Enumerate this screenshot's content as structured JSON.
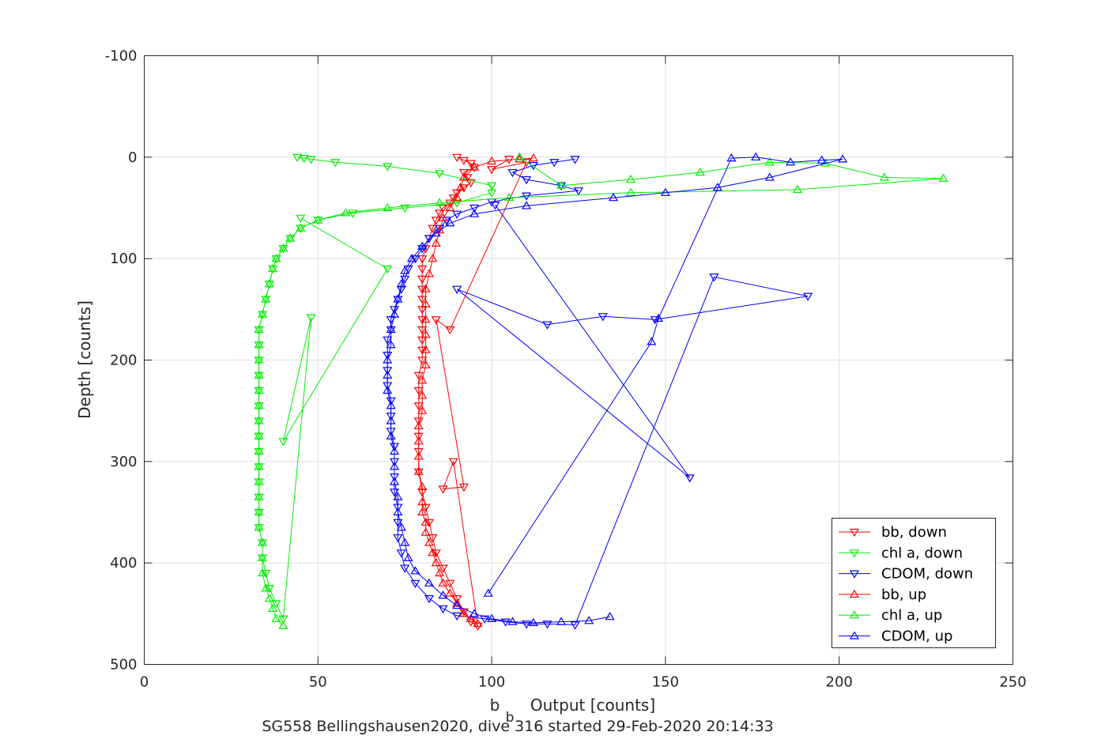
{
  "chart_data": {
    "type": "scatter",
    "title": "SG558 Bellingshausen2020, dive 316 started 29-Feb-2020 20:14:33",
    "xlabel": {
      "main": "Output [counts]",
      "base": "b",
      "sub": "b"
    },
    "ylabel": "Depth [counts]",
    "xlim": [
      0,
      250
    ],
    "ylim": [
      -100,
      500
    ],
    "y_reversed": true,
    "xticks": [
      "0",
      "50",
      "100",
      "150",
      "200",
      "250"
    ],
    "yticks": [
      "-100",
      "0",
      "100",
      "200",
      "300",
      "400",
      "500"
    ],
    "grid": true,
    "legend_position": "bottom-right",
    "series": [
      {
        "name": "bb, down",
        "color": "#ff0000",
        "marker": "triangle-down",
        "points": [
          [
            90,
            0
          ],
          [
            92,
            3
          ],
          [
            94,
            6
          ],
          [
            95,
            10
          ],
          [
            92,
            15
          ],
          [
            93,
            20
          ],
          [
            94,
            25
          ],
          [
            92,
            30
          ],
          [
            90,
            35
          ],
          [
            89,
            40
          ],
          [
            88,
            45
          ],
          [
            86,
            50
          ],
          [
            85,
            55
          ],
          [
            84,
            62
          ],
          [
            83,
            70
          ],
          [
            82,
            80
          ],
          [
            81,
            90
          ],
          [
            80,
            100
          ],
          [
            80,
            110
          ],
          [
            80,
            120
          ],
          [
            80,
            130
          ],
          [
            80,
            140
          ],
          [
            80,
            150
          ],
          [
            80,
            160
          ],
          [
            80,
            170
          ],
          [
            80,
            180
          ],
          [
            80,
            190
          ],
          [
            80,
            200
          ],
          [
            79,
            215
          ],
          [
            79,
            230
          ],
          [
            79,
            245
          ],
          [
            79,
            260
          ],
          [
            79,
            275
          ],
          [
            79,
            290
          ],
          [
            79,
            310
          ],
          [
            80,
            330
          ],
          [
            81,
            345
          ],
          [
            82,
            360
          ],
          [
            83,
            375
          ],
          [
            84,
            390
          ],
          [
            86,
            405
          ],
          [
            88,
            420
          ],
          [
            90,
            435
          ],
          [
            92,
            448
          ],
          [
            94,
            458
          ],
          [
            96,
            462
          ],
          [
            89,
            300
          ],
          [
            86,
            327
          ],
          [
            92,
            325
          ],
          [
            84,
            160
          ],
          [
            88,
            170
          ],
          [
            110,
            5
          ],
          [
            100,
            12
          ],
          [
            105,
            2
          ]
        ]
      },
      {
        "name": "chl a, down",
        "color": "#00ee00",
        "marker": "triangle-down",
        "points": [
          [
            44,
            0
          ],
          [
            46,
            1
          ],
          [
            48,
            2
          ],
          [
            55,
            5
          ],
          [
            70,
            9
          ],
          [
            85,
            16
          ],
          [
            100,
            28
          ],
          [
            100,
            35
          ],
          [
            90,
            45
          ],
          [
            75,
            50
          ],
          [
            60,
            55
          ],
          [
            50,
            62
          ],
          [
            45,
            70
          ],
          [
            42,
            80
          ],
          [
            40,
            90
          ],
          [
            38,
            100
          ],
          [
            37,
            110
          ],
          [
            36,
            125
          ],
          [
            35,
            140
          ],
          [
            34,
            155
          ],
          [
            33,
            170
          ],
          [
            33,
            185
          ],
          [
            33,
            200
          ],
          [
            33,
            215
          ],
          [
            33,
            230
          ],
          [
            33,
            245
          ],
          [
            33,
            260
          ],
          [
            33,
            275
          ],
          [
            33,
            290
          ],
          [
            33,
            305
          ],
          [
            33,
            320
          ],
          [
            33,
            335
          ],
          [
            33,
            350
          ],
          [
            33,
            365
          ],
          [
            34,
            380
          ],
          [
            34,
            395
          ],
          [
            35,
            410
          ],
          [
            36,
            425
          ],
          [
            38,
            440
          ],
          [
            40,
            455
          ],
          [
            48,
            158
          ],
          [
            40,
            280
          ],
          [
            70,
            110
          ],
          [
            45,
            60
          ]
        ]
      },
      {
        "name": "CDOM, down",
        "color": "#0000ff",
        "marker": "triangle-down",
        "points": [
          [
            124,
            2
          ],
          [
            118,
            5
          ],
          [
            112,
            8
          ],
          [
            106,
            15
          ],
          [
            110,
            22
          ],
          [
            120,
            28
          ],
          [
            125,
            33
          ],
          [
            110,
            38
          ],
          [
            100,
            44
          ],
          [
            95,
            50
          ],
          [
            90,
            56
          ],
          [
            87,
            62
          ],
          [
            85,
            70
          ],
          [
            82,
            80
          ],
          [
            80,
            90
          ],
          [
            78,
            100
          ],
          [
            76,
            110
          ],
          [
            75,
            120
          ],
          [
            74,
            130
          ],
          [
            73,
            140
          ],
          [
            72,
            150
          ],
          [
            71,
            160
          ],
          [
            71,
            170
          ],
          [
            70,
            180
          ],
          [
            70,
            195
          ],
          [
            70,
            210
          ],
          [
            70,
            225
          ],
          [
            71,
            240
          ],
          [
            71,
            255
          ],
          [
            71,
            270
          ],
          [
            72,
            285
          ],
          [
            72,
            300
          ],
          [
            72,
            315
          ],
          [
            72,
            330
          ],
          [
            73,
            345
          ],
          [
            73,
            360
          ],
          [
            73,
            375
          ],
          [
            74,
            390
          ],
          [
            75,
            405
          ],
          [
            78,
            420
          ],
          [
            82,
            435
          ],
          [
            86,
            445
          ],
          [
            90,
            452
          ],
          [
            98,
            455
          ],
          [
            104,
            458
          ],
          [
            110,
            460
          ],
          [
            116,
            460
          ],
          [
            124,
            461
          ],
          [
            164,
            118
          ],
          [
            191,
            137
          ],
          [
            147,
            160
          ],
          [
            132,
            157
          ],
          [
            116,
            165
          ],
          [
            90,
            130
          ],
          [
            157,
            316
          ],
          [
            101,
            47
          ]
        ]
      },
      {
        "name": "bb, up",
        "color": "#ff0000",
        "marker": "triangle-up",
        "points": [
          [
            96,
            460
          ],
          [
            94,
            455
          ],
          [
            92,
            450
          ],
          [
            90,
            440
          ],
          [
            88,
            430
          ],
          [
            86,
            420
          ],
          [
            85,
            410
          ],
          [
            84,
            400
          ],
          [
            83,
            390
          ],
          [
            82,
            380
          ],
          [
            81,
            370
          ],
          [
            81,
            360
          ],
          [
            80,
            350
          ],
          [
            80,
            340
          ],
          [
            80,
            325
          ],
          [
            79,
            310
          ],
          [
            79,
            295
          ],
          [
            79,
            280
          ],
          [
            79,
            265
          ],
          [
            80,
            250
          ],
          [
            80,
            235
          ],
          [
            80,
            220
          ],
          [
            81,
            205
          ],
          [
            81,
            190
          ],
          [
            81,
            175
          ],
          [
            81,
            160
          ],
          [
            81,
            145
          ],
          [
            81,
            130
          ],
          [
            82,
            115
          ],
          [
            83,
            100
          ],
          [
            84,
            85
          ],
          [
            85,
            72
          ],
          [
            86,
            60
          ],
          [
            88,
            50
          ],
          [
            90,
            40
          ],
          [
            91,
            30
          ],
          [
            92,
            20
          ],
          [
            95,
            10
          ],
          [
            100,
            4
          ],
          [
            108,
            2
          ],
          [
            112,
            1
          ]
        ]
      },
      {
        "name": "chl a, up",
        "color": "#00ee00",
        "marker": "triangle-up",
        "points": [
          [
            40,
            462
          ],
          [
            38,
            455
          ],
          [
            37,
            445
          ],
          [
            36,
            435
          ],
          [
            35,
            425
          ],
          [
            34,
            410
          ],
          [
            34,
            395
          ],
          [
            34,
            380
          ],
          [
            33,
            365
          ],
          [
            33,
            350
          ],
          [
            33,
            335
          ],
          [
            33,
            320
          ],
          [
            33,
            305
          ],
          [
            33,
            290
          ],
          [
            33,
            275
          ],
          [
            33,
            260
          ],
          [
            33,
            245
          ],
          [
            33,
            230
          ],
          [
            33,
            215
          ],
          [
            33,
            200
          ],
          [
            33,
            185
          ],
          [
            33,
            170
          ],
          [
            34,
            155
          ],
          [
            35,
            140
          ],
          [
            36,
            125
          ],
          [
            37,
            110
          ],
          [
            38,
            100
          ],
          [
            40,
            90
          ],
          [
            42,
            80
          ],
          [
            45,
            70
          ],
          [
            50,
            62
          ],
          [
            58,
            55
          ],
          [
            70,
            50
          ],
          [
            85,
            45
          ],
          [
            105,
            40
          ],
          [
            140,
            35
          ],
          [
            188,
            32
          ],
          [
            230,
            21
          ],
          [
            213,
            20
          ],
          [
            196,
            6
          ],
          [
            180,
            5
          ],
          [
            160,
            15
          ],
          [
            140,
            22
          ],
          [
            120,
            28
          ],
          [
            108,
            0
          ]
        ]
      },
      {
        "name": "CDOM, up",
        "color": "#0000ff",
        "marker": "triangle-up",
        "points": [
          [
            134,
            453
          ],
          [
            128,
            457
          ],
          [
            120,
            458
          ],
          [
            112,
            459
          ],
          [
            106,
            458
          ],
          [
            100,
            455
          ],
          [
            95,
            450
          ],
          [
            90,
            442
          ],
          [
            86,
            432
          ],
          [
            82,
            420
          ],
          [
            78,
            408
          ],
          [
            76,
            395
          ],
          [
            75,
            380
          ],
          [
            74,
            365
          ],
          [
            73,
            350
          ],
          [
            73,
            335
          ],
          [
            72,
            320
          ],
          [
            72,
            305
          ],
          [
            72,
            290
          ],
          [
            71,
            275
          ],
          [
            71,
            260
          ],
          [
            71,
            245
          ],
          [
            70,
            230
          ],
          [
            70,
            215
          ],
          [
            70,
            200
          ],
          [
            71,
            185
          ],
          [
            71,
            170
          ],
          [
            72,
            155
          ],
          [
            73,
            140
          ],
          [
            74,
            125
          ],
          [
            75,
            112
          ],
          [
            77,
            100
          ],
          [
            80,
            88
          ],
          [
            84,
            75
          ],
          [
            88,
            65
          ],
          [
            95,
            56
          ],
          [
            110,
            48
          ],
          [
            135,
            40
          ],
          [
            150,
            35
          ],
          [
            165,
            30
          ],
          [
            180,
            20
          ],
          [
            201,
            2
          ],
          [
            195,
            3
          ],
          [
            186,
            5
          ],
          [
            176,
            0
          ],
          [
            169,
            1
          ],
          [
            148,
            159
          ],
          [
            146,
            182
          ],
          [
            99,
            430
          ]
        ]
      }
    ]
  }
}
